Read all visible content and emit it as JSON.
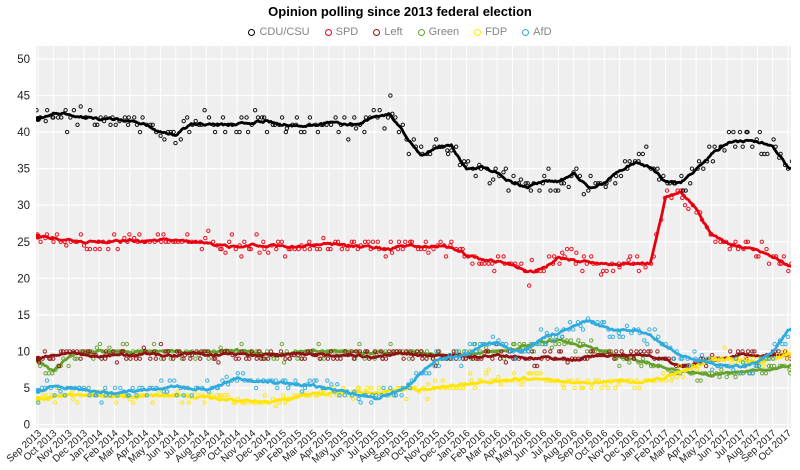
{
  "chart_data": {
    "type": "scatter",
    "title": "Opinion polling since 2013 federal election",
    "xlabel": "",
    "ylabel": "",
    "ylim": [
      0,
      50
    ],
    "yticks": [
      0,
      5,
      10,
      15,
      20,
      25,
      30,
      35,
      40,
      45,
      50
    ],
    "grid": true,
    "legend_position": "top",
    "panel_bg": "#efefef",
    "grid_color": "#ffffff",
    "text_color": "#222222",
    "legend_text_color": "#848484",
    "categories": [
      "Sep 2013",
      "Oct 2013",
      "Nov 2013",
      "Dec 2013",
      "Jan 2014",
      "Feb 2014",
      "Mar 2014",
      "Apr 2014",
      "May 2014",
      "Jun 2014",
      "Jul 2014",
      "Aug 2014",
      "Sep 2014",
      "Oct 2014",
      "Nov 2014",
      "Dec 2014",
      "Jan 2015",
      "Feb 2015",
      "Mar 2015",
      "Apr 2015",
      "May 2015",
      "Jun 2015",
      "Jul 2015",
      "Aug 2015",
      "Sep 2015",
      "Oct 2015",
      "Nov 2015",
      "Dec 2015",
      "Jan 2016",
      "Feb 2016",
      "Mar 2016",
      "Apr 2016",
      "May 2016",
      "Jun 2016",
      "Jul 2016",
      "Aug 2016",
      "Sep 2016",
      "Oct 2016",
      "Nov 2016",
      "Dec 2016",
      "Jan 2017",
      "Feb 2017",
      "Mar 2017",
      "Apr 2017",
      "May 2017",
      "Jun 2017",
      "Jul 2017",
      "Aug 2017",
      "Sep 2017",
      "Oct 2017"
    ],
    "series": [
      {
        "name": "CDU/CSU",
        "color": "#000000",
        "scatter_spread": 1.5,
        "values": [
          41.8,
          42.5,
          42.5,
          42,
          41.8,
          41.8,
          41.5,
          41,
          40,
          39.6,
          41.2,
          41,
          41,
          41,
          41.3,
          41.5,
          41,
          40.8,
          41,
          41.3,
          41,
          41.3,
          42,
          42.5,
          39.5,
          36.8,
          37.8,
          38.2,
          34.8,
          35.3,
          34.3,
          33,
          32.5,
          33.3,
          33.2,
          34.3,
          32.3,
          33,
          34.8,
          35.8,
          35.2,
          33.2,
          33,
          34.8,
          37,
          38.5,
          38.8,
          38.6,
          38.2,
          35.2
        ]
      },
      {
        "name": "SPD",
        "color": "#e8000f",
        "scatter_spread": 1.2,
        "values": [
          25.7,
          25.5,
          25.2,
          25,
          25,
          25,
          25.2,
          25,
          25.3,
          25.2,
          25,
          24.8,
          24.5,
          24.3,
          24.5,
          24.5,
          24.5,
          24.3,
          24.5,
          24.7,
          24.5,
          24.3,
          24.2,
          24,
          24.5,
          24.3,
          24.5,
          24.2,
          23.2,
          22.5,
          22.3,
          21.8,
          20.8,
          21.3,
          22.8,
          22.5,
          22.3,
          22,
          21.8,
          22,
          22,
          31,
          31.8,
          29.5,
          26,
          24.8,
          24.3,
          23.8,
          23,
          21.8
        ]
      },
      {
        "name": "Left",
        "color": "#8e1414",
        "scatter_spread": 0.9,
        "values": [
          9,
          9.5,
          9.8,
          9.5,
          9.3,
          9.5,
          9.5,
          9.7,
          9.5,
          9.5,
          9.8,
          9.5,
          9.5,
          9.7,
          9.5,
          9.5,
          9.5,
          9.7,
          9.5,
          9.5,
          9.3,
          9.5,
          9.3,
          9.5,
          9.7,
          9.5,
          9.3,
          9.5,
          9.3,
          9.2,
          9.5,
          9.3,
          9,
          9.2,
          9,
          8.8,
          9.3,
          9.5,
          9.3,
          9.5,
          9.5,
          8.8,
          8,
          8.3,
          8.8,
          9,
          9.8,
          9.3,
          9.5,
          9.6
        ]
      },
      {
        "name": "Green",
        "color": "#64a12d",
        "scatter_spread": 0.95,
        "values": [
          8.8,
          7.2,
          9.3,
          9.8,
          10,
          10,
          10,
          10,
          10,
          10,
          9.8,
          9.8,
          10,
          10.2,
          9.8,
          9.5,
          9.7,
          10,
          10.2,
          10,
          10,
          9.8,
          9.8,
          9.7,
          9.8,
          9.8,
          9.5,
          9.3,
          9.5,
          9.8,
          10,
          10.3,
          10.8,
          11.3,
          11.5,
          11,
          10.5,
          10,
          9.3,
          8.8,
          8.3,
          7.8,
          7.3,
          7,
          6.8,
          7,
          7.3,
          7.5,
          7.5,
          8
        ]
      },
      {
        "name": "FDP",
        "color": "#ffe500",
        "scatter_spread": 0.8,
        "values": [
          3.5,
          3.8,
          4,
          4,
          4,
          3.8,
          3.8,
          3.8,
          4,
          4,
          3.8,
          3.7,
          3.5,
          3.3,
          3.2,
          3,
          3.2,
          3.8,
          4.2,
          4.3,
          4.4,
          4.4,
          4.3,
          4.5,
          4.7,
          4.8,
          5,
          5.2,
          5.5,
          5.8,
          6,
          6.2,
          6.3,
          6.2,
          6,
          5.8,
          5.5,
          5.8,
          6,
          5.8,
          6,
          6.5,
          7.2,
          8,
          8.8,
          9,
          8.7,
          8.5,
          9,
          9.6
        ]
      },
      {
        "name": "AfD",
        "color": "#2fabde",
        "scatter_spread": 1.05,
        "values": [
          4.6,
          5.2,
          5,
          4.8,
          4.5,
          4.3,
          4.5,
          4.8,
          5,
          5.3,
          5,
          4.8,
          5.5,
          6.3,
          6,
          5.8,
          5.8,
          5.5,
          5.3,
          4.8,
          4.5,
          4,
          3.5,
          4.3,
          5,
          7,
          8.8,
          9.2,
          9.5,
          10.8,
          11.3,
          10,
          10.3,
          12,
          12.5,
          13.5,
          14.2,
          13.2,
          12.8,
          13,
          12.2,
          10.8,
          9.5,
          8.8,
          8.3,
          8,
          8,
          8.5,
          10,
          12.8
        ]
      }
    ]
  }
}
